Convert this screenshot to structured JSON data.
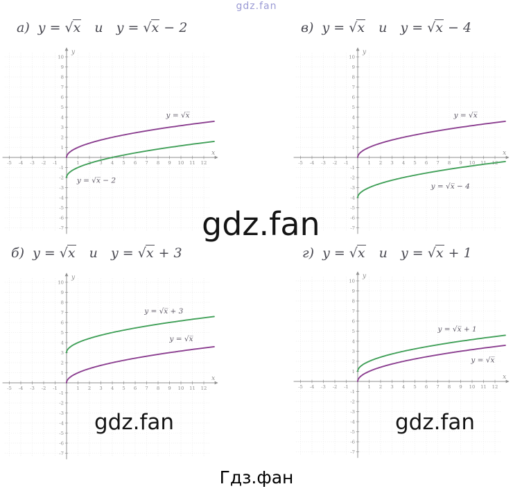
{
  "watermarks": {
    "top": "gdz.fan",
    "center": "gdz.fan",
    "bottom_left": "gdz.fan",
    "bottom_right": "gdz.fan",
    "footer": "Гдз.фан"
  },
  "colors": {
    "sqrt_base": "#8a3d8f",
    "shifted": "#3f9f57",
    "axis": "#8f8f8f",
    "grid": "#d9d9d9",
    "tick_text": "#8a8a8a",
    "label_text": "#5c5764"
  },
  "chart_data": [
    {
      "id": "a",
      "type": "line",
      "prefix": "а)",
      "title_left": "y = √x",
      "conjunction": "и",
      "title_right": "y = √x − 2",
      "axes": {
        "x_min": -5,
        "x_max": 12,
        "y_min": -7,
        "y_max": 10,
        "x_label": "x",
        "y_label": "y",
        "tick_step": 1,
        "grid": true
      },
      "series": [
        {
          "name": "y = √x",
          "expression": "sqrt(x)",
          "offset": 0,
          "color_key": "sqrt_base",
          "x_range": [
            0,
            12.9
          ],
          "label": "y = √x",
          "label_pos": {
            "x": 8.7,
            "y": 3.95
          },
          "key_points": [
            [
              0,
              0
            ],
            [
              1,
              1
            ],
            [
              4,
              2
            ],
            [
              9,
              3
            ],
            [
              12,
              3.46
            ]
          ]
        },
        {
          "name": "y = √x − 2",
          "expression": "sqrt(x) - 2",
          "offset": -2,
          "color_key": "shifted",
          "x_range": [
            0,
            12.9
          ],
          "label": "y = √x − 2",
          "label_pos": {
            "x": 0.9,
            "y": -2.5
          },
          "key_points": [
            [
              0,
              -2
            ],
            [
              1,
              -1
            ],
            [
              4,
              0
            ],
            [
              9,
              1
            ],
            [
              12,
              1.46
            ]
          ]
        }
      ]
    },
    {
      "id": "v",
      "type": "line",
      "prefix": "в)",
      "title_left": "y = √x",
      "conjunction": "и",
      "title_right": "y = √x − 4",
      "axes": {
        "x_min": -5,
        "x_max": 12,
        "y_min": -7,
        "y_max": 10,
        "x_label": "x",
        "y_label": "y",
        "tick_step": 1,
        "grid": true
      },
      "series": [
        {
          "name": "y = √x",
          "expression": "sqrt(x)",
          "offset": 0,
          "color_key": "sqrt_base",
          "x_range": [
            0,
            12.9
          ],
          "label": "y = √x",
          "label_pos": {
            "x": 8.4,
            "y": 3.95
          },
          "key_points": [
            [
              0,
              0
            ],
            [
              1,
              1
            ],
            [
              4,
              2
            ],
            [
              9,
              3
            ],
            [
              12,
              3.46
            ]
          ]
        },
        {
          "name": "y = √x − 4",
          "expression": "sqrt(x) - 4",
          "offset": -4,
          "color_key": "shifted",
          "x_range": [
            0,
            12.9
          ],
          "label": "y = √x − 4",
          "label_pos": {
            "x": 6.4,
            "y": -3.1
          },
          "key_points": [
            [
              0,
              -4
            ],
            [
              1,
              -3
            ],
            [
              4,
              -2
            ],
            [
              9,
              -1
            ],
            [
              12,
              -0.54
            ]
          ]
        }
      ]
    },
    {
      "id": "b",
      "type": "line",
      "prefix": "б)",
      "title_left": "y = √x",
      "conjunction": "и",
      "title_right": "y = √x + 3",
      "axes": {
        "x_min": -5,
        "x_max": 12,
        "y_min": -7,
        "y_max": 10,
        "x_label": "x",
        "y_label": "y",
        "tick_step": 1,
        "grid": true
      },
      "series": [
        {
          "name": "y = √x + 3",
          "expression": "sqrt(x) + 3",
          "offset": 3,
          "color_key": "shifted",
          "x_range": [
            0,
            12.9
          ],
          "label": "y = √x + 3",
          "label_pos": {
            "x": 6.8,
            "y": 6.9
          },
          "key_points": [
            [
              0,
              3
            ],
            [
              1,
              4
            ],
            [
              4,
              5
            ],
            [
              9,
              6
            ],
            [
              12,
              6.46
            ]
          ]
        },
        {
          "name": "y = √x",
          "expression": "sqrt(x)",
          "offset": 0,
          "color_key": "sqrt_base",
          "x_range": [
            0,
            12.9
          ],
          "label": "y = √x",
          "label_pos": {
            "x": 9.0,
            "y": 4.15
          },
          "key_points": [
            [
              0,
              0
            ],
            [
              1,
              1
            ],
            [
              4,
              2
            ],
            [
              9,
              3
            ],
            [
              12,
              3.46
            ]
          ]
        }
      ]
    },
    {
      "id": "g",
      "type": "line",
      "prefix": "г)",
      "title_left": "y = √x",
      "conjunction": "и",
      "title_right": "y = √x + 1",
      "axes": {
        "x_min": -5,
        "x_max": 12,
        "y_min": -7,
        "y_max": 10,
        "x_label": "x",
        "y_label": "y",
        "tick_step": 1,
        "grid": true
      },
      "series": [
        {
          "name": "y = √x + 1",
          "expression": "sqrt(x) + 1",
          "offset": 1,
          "color_key": "shifted",
          "x_range": [
            0,
            12.9
          ],
          "label": "y = √x + 1",
          "label_pos": {
            "x": 7.0,
            "y": 4.95
          },
          "key_points": [
            [
              0,
              1
            ],
            [
              1,
              2
            ],
            [
              4,
              3
            ],
            [
              9,
              4
            ],
            [
              12,
              4.46
            ]
          ]
        },
        {
          "name": "y = √x",
          "expression": "sqrt(x)",
          "offset": 0,
          "color_key": "sqrt_base",
          "x_range": [
            0,
            12.9
          ],
          "label": "y = √x",
          "label_pos": {
            "x": 9.9,
            "y": 1.9
          },
          "key_points": [
            [
              0,
              0
            ],
            [
              1,
              1
            ],
            [
              4,
              2
            ],
            [
              9,
              3
            ],
            [
              12,
              3.46
            ]
          ]
        }
      ]
    }
  ]
}
